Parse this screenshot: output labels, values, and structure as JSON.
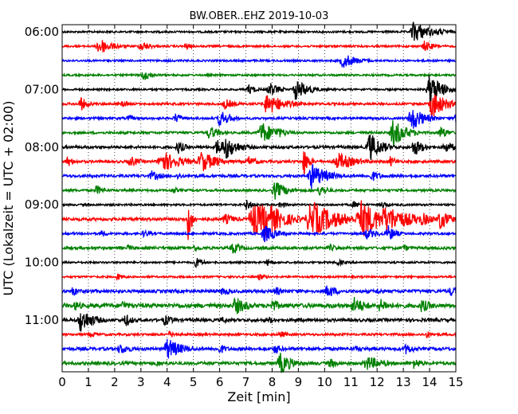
{
  "chart_data": {
    "type": "line",
    "title": "BW.OBER..EHZ 2019-10-03",
    "xlabel": "Zeit  [min]",
    "ylabel": "UTC (Lokalzeit = UTC + 02:00)",
    "xlim": [
      0,
      15
    ],
    "x_ticks": [
      "0",
      "1",
      "2",
      "3",
      "4",
      "5",
      "6",
      "7",
      "8",
      "9",
      "10",
      "11",
      "12",
      "13",
      "14",
      "15"
    ],
    "y_tick_labels": [
      "06:00",
      "07:00",
      "08:00",
      "09:00",
      "10:00",
      "11:00"
    ],
    "grid": "dotted vertical lines at each minute",
    "colors": [
      "#000000",
      "#ff0000",
      "#0000ff",
      "#008000"
    ],
    "series": [
      {
        "start": "06:00",
        "color": "#000000",
        "noise": 0.5,
        "events": [
          [
            13.4,
            6,
            0.6
          ],
          [
            14.3,
            2,
            0.5
          ]
        ]
      },
      {
        "start": "06:15",
        "color": "#ff0000",
        "noise": 0.5,
        "events": [
          [
            1.4,
            5,
            0.5
          ],
          [
            3.0,
            3,
            0.4
          ],
          [
            4.7,
            2,
            0.3
          ],
          [
            13.8,
            3,
            0.4
          ]
        ]
      },
      {
        "start": "06:30",
        "color": "#0000ff",
        "noise": 0.5,
        "events": [
          [
            10.7,
            4,
            0.6
          ]
        ]
      },
      {
        "start": "06:45",
        "color": "#008000",
        "noise": 0.5,
        "events": [
          [
            3.1,
            3,
            0.4
          ]
        ]
      },
      {
        "start": "07:00",
        "color": "#000000",
        "noise": 0.5,
        "events": [
          [
            7.1,
            3,
            0.3
          ],
          [
            7.9,
            4,
            0.4
          ],
          [
            8.9,
            6,
            0.5
          ],
          [
            14.0,
            9,
            0.5
          ]
        ]
      },
      {
        "start": "07:15",
        "color": "#ff0000",
        "noise": 0.6,
        "events": [
          [
            0.7,
            4,
            0.3
          ],
          [
            2.3,
            2,
            0.3
          ],
          [
            6.2,
            3,
            0.4
          ],
          [
            7.8,
            6,
            0.7
          ],
          [
            14.1,
            8,
            0.5
          ]
        ]
      },
      {
        "start": "07:30",
        "color": "#0000ff",
        "noise": 0.6,
        "events": [
          [
            2.5,
            2,
            0.3
          ],
          [
            4.3,
            3,
            0.3
          ],
          [
            6.0,
            5,
            0.4
          ],
          [
            13.3,
            7,
            0.5
          ],
          [
            15.0,
            5,
            0.3
          ]
        ]
      },
      {
        "start": "07:45",
        "color": "#008000",
        "noise": 0.6,
        "events": [
          [
            5.6,
            4,
            0.4
          ],
          [
            7.6,
            6,
            0.6
          ],
          [
            8.2,
            3,
            0.5
          ],
          [
            12.6,
            8,
            0.5
          ],
          [
            14.4,
            4,
            0.3
          ]
        ]
      },
      {
        "start": "08:00",
        "color": "#000000",
        "noise": 0.7,
        "events": [
          [
            4.4,
            4,
            0.3
          ],
          [
            5.9,
            5,
            0.3
          ],
          [
            6.2,
            7,
            0.5
          ],
          [
            11.7,
            8,
            0.5
          ],
          [
            13.4,
            5,
            0.4
          ],
          [
            14.6,
            3,
            0.5
          ]
        ]
      },
      {
        "start": "08:15",
        "color": "#ff0000",
        "noise": 0.7,
        "events": [
          [
            0.2,
            3,
            0.3
          ],
          [
            2.6,
            3,
            0.4
          ],
          [
            3.8,
            6,
            0.7
          ],
          [
            5.3,
            6,
            0.6
          ],
          [
            7.1,
            3,
            0.4
          ],
          [
            9.2,
            8,
            0.2
          ],
          [
            10.5,
            5,
            0.7
          ],
          [
            12.5,
            3,
            0.3
          ]
        ]
      },
      {
        "start": "08:30",
        "color": "#0000ff",
        "noise": 0.7,
        "events": [
          [
            3.4,
            3,
            0.4
          ],
          [
            4.4,
            2,
            0.3
          ],
          [
            9.5,
            7,
            0.6
          ],
          [
            11.8,
            3,
            0.4
          ]
        ]
      },
      {
        "start": "08:45",
        "color": "#008000",
        "noise": 0.6,
        "events": [
          [
            1.3,
            3,
            0.3
          ],
          [
            4.2,
            2,
            0.3
          ],
          [
            8.1,
            5,
            0.5
          ],
          [
            9.8,
            3,
            0.4
          ]
        ]
      },
      {
        "start": "09:00",
        "color": "#000000",
        "noise": 0.5,
        "events": [
          [
            7.0,
            3,
            0.3
          ],
          [
            8.3,
            2,
            0.3
          ],
          [
            11.1,
            2,
            0.3
          ],
          [
            12.2,
            2,
            0.3
          ]
        ]
      },
      {
        "start": "09:15",
        "color": "#ff0000",
        "noise": 0.8,
        "events": [
          [
            4.8,
            12,
            0.15
          ],
          [
            6.2,
            3,
            0.5
          ],
          [
            7.3,
            9,
            0.9
          ],
          [
            7.7,
            11,
            0.7
          ],
          [
            9.5,
            10,
            1.0
          ],
          [
            10.2,
            5,
            0.5
          ],
          [
            11.4,
            10,
            0.9
          ],
          [
            12.3,
            8,
            1.0
          ],
          [
            13.7,
            4,
            0.5
          ],
          [
            14.4,
            6,
            0.4
          ]
        ]
      },
      {
        "start": "09:30",
        "color": "#0000ff",
        "noise": 0.6,
        "events": [
          [
            1.5,
            2,
            0.3
          ],
          [
            3.1,
            2,
            0.4
          ],
          [
            7.7,
            5,
            0.5
          ],
          [
            11.6,
            3,
            0.5
          ],
          [
            12.4,
            5,
            0.3
          ]
        ]
      },
      {
        "start": "09:45",
        "color": "#008000",
        "noise": 0.7,
        "events": [
          [
            2.5,
            2,
            0.3
          ],
          [
            5.0,
            2,
            0.4
          ],
          [
            6.5,
            3,
            0.4
          ],
          [
            10.2,
            2,
            0.4
          ],
          [
            13.0,
            2,
            0.3
          ]
        ]
      },
      {
        "start": "10:00",
        "color": "#000000",
        "noise": 0.5,
        "events": [
          [
            5.1,
            3,
            0.3
          ],
          [
            7.8,
            2,
            0.3
          ],
          [
            10.5,
            2,
            0.3
          ]
        ]
      },
      {
        "start": "10:15",
        "color": "#ff0000",
        "noise": 0.5,
        "events": [
          [
            2.1,
            2,
            0.3
          ],
          [
            7.5,
            2,
            0.3
          ]
        ]
      },
      {
        "start": "10:30",
        "color": "#0000ff",
        "noise": 0.8,
        "events": [
          [
            0.4,
            3,
            0.3
          ],
          [
            6.1,
            3,
            0.3
          ],
          [
            8.1,
            3,
            0.3
          ],
          [
            10.1,
            4,
            0.4
          ],
          [
            12.0,
            2,
            0.3
          ],
          [
            14.8,
            3,
            0.3
          ]
        ]
      },
      {
        "start": "10:45",
        "color": "#008000",
        "noise": 1.1,
        "events": [
          [
            0.5,
            3,
            0.3
          ],
          [
            2.3,
            3,
            0.3
          ],
          [
            6.6,
            5,
            0.5
          ],
          [
            8.0,
            4,
            0.3
          ],
          [
            11.1,
            5,
            0.5
          ],
          [
            12.1,
            4,
            0.4
          ],
          [
            13.7,
            4,
            0.4
          ]
        ]
      },
      {
        "start": "11:00",
        "color": "#000000",
        "noise": 0.8,
        "events": [
          [
            0.7,
            7,
            0.5
          ],
          [
            2.4,
            4,
            0.3
          ],
          [
            3.9,
            3,
            0.4
          ],
          [
            6.1,
            2,
            0.3
          ],
          [
            7.9,
            2,
            0.3
          ]
        ]
      },
      {
        "start": "11:15",
        "color": "#ff0000",
        "noise": 0.6,
        "events": [
          [
            1.1,
            2,
            0.3
          ],
          [
            4.1,
            2,
            0.3
          ],
          [
            8.3,
            2,
            0.3
          ],
          [
            13.9,
            2,
            0.3
          ]
        ]
      },
      {
        "start": "11:30",
        "color": "#0000ff",
        "noise": 0.8,
        "events": [
          [
            2.2,
            3,
            0.5
          ],
          [
            4.0,
            6,
            0.6
          ],
          [
            6.0,
            3,
            0.3
          ],
          [
            8.1,
            3,
            0.3
          ],
          [
            11.2,
            2,
            0.3
          ],
          [
            13.1,
            3,
            0.4
          ]
        ]
      },
      {
        "start": "11:45",
        "color": "#008000",
        "noise": 0.8,
        "events": [
          [
            3.6,
            2,
            0.3
          ],
          [
            8.3,
            6,
            0.5
          ],
          [
            10.2,
            3,
            0.3
          ],
          [
            11.6,
            4,
            0.7
          ],
          [
            13.4,
            3,
            0.4
          ]
        ]
      }
    ]
  }
}
